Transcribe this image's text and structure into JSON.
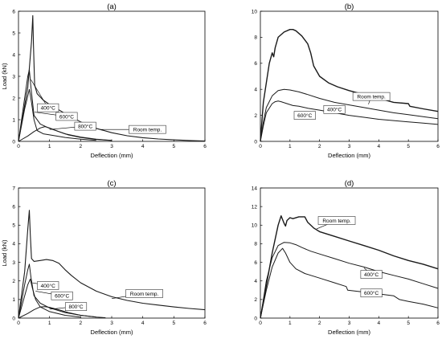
{
  "chart_data": [
    {
      "type": "line",
      "panel": "(a)",
      "xlabel": "Deflection (mm)",
      "ylabel": "Load (kN)",
      "xlim": [
        0,
        6
      ],
      "ylim": [
        0,
        6
      ],
      "xticks": [
        0,
        1,
        2,
        3,
        4,
        5,
        6
      ],
      "yticks": [
        0,
        1,
        2,
        3,
        4,
        5,
        6
      ],
      "series": [
        {
          "name": "Room temp.",
          "width": 1.1,
          "x": [
            0,
            0.3,
            0.42,
            0.46,
            0.48,
            0.52,
            0.6,
            0.8,
            1.0,
            1.3,
            1.6,
            2.0,
            2.5,
            3.0,
            3.5,
            4.0,
            4.5,
            5.0,
            5.5,
            6.0
          ],
          "y": [
            0,
            2.5,
            4.6,
            5.8,
            4.5,
            2.6,
            2.2,
            1.9,
            1.7,
            1.45,
            1.2,
            0.9,
            0.6,
            0.4,
            0.26,
            0.17,
            0.11,
            0.07,
            0.04,
            0.02
          ]
        },
        {
          "name": "400°C",
          "width": 1.0,
          "x": [
            0,
            0.2,
            0.3,
            0.35,
            0.4,
            0.5,
            0.7,
            1.0,
            1.5,
            2.0,
            2.5,
            3.0
          ],
          "y": [
            0,
            2.0,
            3.0,
            3.3,
            2.5,
            1.2,
            0.8,
            0.6,
            0.35,
            0.2,
            0.1,
            0.05
          ]
        },
        {
          "name": "600°C",
          "width": 1.0,
          "x": [
            0,
            0.2,
            0.3,
            0.35,
            0.42,
            0.5,
            0.6,
            0.8,
            1.0,
            1.5,
            2.0,
            2.5
          ],
          "y": [
            0,
            1.5,
            2.1,
            2.4,
            1.8,
            1.0,
            0.5,
            0.35,
            0.3,
            0.18,
            0.1,
            0.05
          ]
        },
        {
          "name": "800°C",
          "width": 1.0,
          "x": [
            0,
            0.3,
            0.5,
            0.7,
            0.85,
            1.0,
            1.3,
            1.6,
            2.0,
            2.5,
            3.0
          ],
          "y": [
            0,
            0.25,
            0.45,
            0.62,
            0.68,
            0.62,
            0.45,
            0.3,
            0.18,
            0.09,
            0.04
          ]
        }
      ],
      "annotations": [
        {
          "text": "400°C",
          "at": [
            0.95,
            1.55
          ],
          "to": [
            0.4,
            2.85
          ]
        },
        {
          "text": "600°C",
          "at": [
            1.55,
            1.15
          ],
          "to": [
            0.52,
            1.35
          ]
        },
        {
          "text": "800°C",
          "at": [
            2.15,
            0.7
          ],
          "to": [
            1.0,
            0.55
          ]
        },
        {
          "text": "Room temp.",
          "at": [
            4.15,
            0.55
          ],
          "to": [
            2.65,
            0.55
          ]
        }
      ]
    },
    {
      "type": "line",
      "panel": "(b)",
      "xlabel": "Deflection (mm)",
      "ylabel": "",
      "xlim": [
        0,
        6
      ],
      "ylim": [
        0,
        10
      ],
      "xticks": [
        0,
        1,
        2,
        3,
        4,
        5,
        6
      ],
      "yticks": [
        0,
        2,
        4,
        6,
        8,
        10
      ],
      "series": [
        {
          "name": "Room temp.",
          "width": 1.4,
          "x": [
            0,
            0.1,
            0.3,
            0.4,
            0.45,
            0.5,
            0.6,
            0.8,
            1.0,
            1.1,
            1.2,
            1.4,
            1.6,
            1.7,
            1.8,
            2.0,
            2.3,
            2.6,
            3.0,
            3.5,
            4.0,
            4.5,
            5.0,
            5.05,
            5.5,
            6.0
          ],
          "y": [
            0,
            3.0,
            6.0,
            6.8,
            6.5,
            7.2,
            8.0,
            8.4,
            8.6,
            8.6,
            8.5,
            8.1,
            7.5,
            6.8,
            5.8,
            5.0,
            4.5,
            4.2,
            3.9,
            3.6,
            3.3,
            3.0,
            2.9,
            2.7,
            2.5,
            2.3
          ]
        },
        {
          "name": "400°C",
          "width": 1.0,
          "x": [
            0,
            0.1,
            0.2,
            0.4,
            0.6,
            0.8,
            1.0,
            1.3,
            1.6,
            2.0,
            2.5,
            3.0,
            3.5,
            4.0,
            4.5,
            5.0,
            5.5,
            6.0
          ],
          "y": [
            0,
            1.5,
            2.6,
            3.5,
            3.9,
            4.0,
            3.95,
            3.8,
            3.6,
            3.3,
            3.0,
            2.8,
            2.6,
            2.4,
            2.2,
            2.05,
            1.9,
            1.75
          ]
        },
        {
          "name": "600°C",
          "width": 1.0,
          "x": [
            0,
            0.1,
            0.2,
            0.4,
            0.5,
            0.6,
            0.7,
            0.9,
            1.1,
            1.3,
            1.6,
            2.0,
            2.5,
            3.0,
            3.5,
            4.0,
            4.5,
            5.0,
            5.5,
            6.0
          ],
          "y": [
            0,
            1.2,
            2.2,
            2.9,
            3.05,
            3.1,
            3.05,
            2.9,
            2.75,
            2.7,
            2.55,
            2.4,
            2.2,
            2.0,
            1.85,
            1.7,
            1.6,
            1.5,
            1.4,
            1.3
          ]
        }
      ],
      "annotations": [
        {
          "text": "Room temp.",
          "at": [
            3.75,
            3.45
          ],
          "to": [
            3.65,
            2.85
          ]
        },
        {
          "text": "400°C",
          "at": [
            2.5,
            2.45
          ],
          "to": [
            2.3,
            2.65
          ]
        },
        {
          "text": "600°C",
          "at": [
            1.5,
            2.0
          ],
          "to": [
            1.5,
            2.2
          ]
        }
      ]
    },
    {
      "type": "line",
      "panel": "(c)",
      "xlabel": "Deflection (mm)",
      "ylabel": "Load (kN)",
      "xlim": [
        0,
        6
      ],
      "ylim": [
        0,
        7
      ],
      "xticks": [
        0,
        1,
        2,
        3,
        4,
        5,
        6
      ],
      "yticks": [
        0,
        1,
        2,
        3,
        4,
        5,
        6,
        7
      ],
      "series": [
        {
          "name": "Room temp.",
          "width": 1.1,
          "x": [
            0,
            0.2,
            0.3,
            0.35,
            0.38,
            0.42,
            0.5,
            0.7,
            0.9,
            1.1,
            1.3,
            1.5,
            1.7,
            2.0,
            2.5,
            3.0,
            3.5,
            4.0,
            4.5,
            5.0,
            5.5,
            6.0
          ],
          "y": [
            0,
            2.5,
            4.8,
            5.8,
            4.5,
            3.2,
            3.05,
            3.1,
            3.15,
            3.1,
            2.95,
            2.6,
            2.3,
            1.9,
            1.45,
            1.15,
            0.95,
            0.8,
            0.7,
            0.6,
            0.52,
            0.45
          ]
        },
        {
          "name": "400°C",
          "width": 1.0,
          "x": [
            0,
            0.2,
            0.3,
            0.35,
            0.4,
            0.5,
            0.7,
            1.0,
            1.5,
            2.0,
            2.5
          ],
          "y": [
            0,
            1.8,
            2.6,
            2.9,
            2.2,
            1.2,
            0.8,
            0.55,
            0.3,
            0.15,
            0.06
          ]
        },
        {
          "name": "600°C",
          "width": 1.0,
          "x": [
            0,
            0.2,
            0.3,
            0.38,
            0.45,
            0.55,
            0.7,
            1.0,
            1.5,
            2.0
          ],
          "y": [
            0,
            1.2,
            1.8,
            2.1,
            1.6,
            1.0,
            0.6,
            0.35,
            0.15,
            0.05
          ]
        },
        {
          "name": "800°C",
          "width": 1.0,
          "x": [
            0,
            0.3,
            0.5,
            0.7,
            0.85,
            1.0,
            1.3,
            1.6,
            2.0,
            2.5,
            2.8
          ],
          "y": [
            0,
            0.25,
            0.45,
            0.6,
            0.62,
            0.58,
            0.45,
            0.3,
            0.15,
            0.05,
            0.02
          ]
        }
      ],
      "annotations": [
        {
          "text": "400°C",
          "at": [
            0.95,
            1.75
          ],
          "to": [
            0.45,
            1.9
          ]
        },
        {
          "text": "600°C",
          "at": [
            1.4,
            1.2
          ],
          "to": [
            0.55,
            1.45
          ]
        },
        {
          "text": "800°C",
          "at": [
            1.85,
            0.62
          ],
          "to": [
            1.0,
            0.48
          ]
        },
        {
          "text": "Room temp.",
          "at": [
            4.05,
            1.32
          ],
          "to": [
            3.0,
            1.05
          ]
        }
      ]
    },
    {
      "type": "line",
      "panel": "(d)",
      "xlabel": "Deflection (mm)",
      "ylabel": "",
      "xlim": [
        0,
        6
      ],
      "ylim": [
        0,
        14
      ],
      "xticks": [
        0,
        1,
        2,
        3,
        4,
        5,
        6
      ],
      "yticks": [
        0,
        2,
        4,
        6,
        8,
        10,
        12,
        14
      ],
      "series": [
        {
          "name": "Room temp.",
          "width": 1.4,
          "x": [
            0,
            0.2,
            0.4,
            0.6,
            0.7,
            0.8,
            0.85,
            0.9,
            1.0,
            1.1,
            1.3,
            1.5,
            1.6,
            1.8,
            2.0,
            2.5,
            3.0,
            3.5,
            4.0,
            4.5,
            5.0,
            5.5,
            6.0
          ],
          "y": [
            0,
            3.5,
            7.0,
            10.0,
            11.0,
            10.2,
            9.9,
            10.5,
            10.8,
            10.7,
            10.9,
            10.9,
            10.3,
            9.7,
            9.3,
            8.8,
            8.3,
            7.8,
            7.3,
            6.7,
            6.2,
            5.8,
            5.3
          ]
        },
        {
          "name": "400°C",
          "width": 1.0,
          "x": [
            0,
            0.2,
            0.4,
            0.6,
            0.8,
            1.0,
            1.2,
            1.4,
            1.7,
            2.0,
            2.5,
            3.0,
            3.5,
            4.0,
            4.5,
            5.0,
            5.5,
            6.0
          ],
          "y": [
            0,
            4.0,
            6.5,
            7.8,
            8.15,
            8.1,
            7.9,
            7.6,
            7.2,
            6.9,
            6.4,
            5.9,
            5.5,
            5.0,
            4.6,
            4.2,
            3.7,
            3.2
          ]
        },
        {
          "name": "600°C",
          "width": 1.0,
          "x": [
            0,
            0.2,
            0.4,
            0.6,
            0.75,
            0.85,
            1.0,
            1.2,
            1.5,
            2.0,
            2.5,
            2.9,
            2.95,
            3.5,
            4.0,
            4.5,
            4.7,
            5.0,
            5.5,
            6.0
          ],
          "y": [
            0,
            3.0,
            5.5,
            7.0,
            7.5,
            7.0,
            6.0,
            5.3,
            4.8,
            4.3,
            3.8,
            3.4,
            3.0,
            2.8,
            2.6,
            2.4,
            2.0,
            1.8,
            1.5,
            1.1
          ]
        }
      ],
      "annotations": [
        {
          "text": "Room temp.",
          "at": [
            2.58,
            10.5
          ],
          "to": [
            1.9,
            9.6
          ]
        },
        {
          "text": "400°C",
          "at": [
            3.75,
            4.7
          ],
          "to": [
            3.5,
            5.4
          ]
        },
        {
          "text": "600°C",
          "at": [
            3.75,
            2.7
          ],
          "to": [
            3.7,
            2.25
          ]
        }
      ]
    }
  ]
}
